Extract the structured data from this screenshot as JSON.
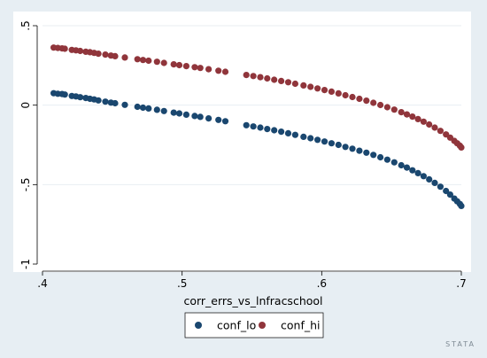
{
  "chart_data": {
    "type": "scatter",
    "xlabel": "corr_errs_vs_lnfracschool",
    "ylabel": "",
    "xlim": [
      0.4,
      0.7
    ],
    "ylim": [
      -1.0,
      0.5
    ],
    "x_ticks": [
      ".4",
      ".5",
      ".6",
      ".7"
    ],
    "y_ticks": [
      "-1",
      "-.5",
      "0",
      ".5"
    ],
    "grid": "horizontal",
    "legend_position": "bottom",
    "series": [
      {
        "name": "conf_lo",
        "color": "#1a476f",
        "points": [
          [
            0.408,
            0.075
          ],
          [
            0.411,
            0.072
          ],
          [
            0.414,
            0.07
          ],
          [
            0.416,
            0.067
          ],
          [
            0.421,
            0.058
          ],
          [
            0.424,
            0.055
          ],
          [
            0.427,
            0.05
          ],
          [
            0.431,
            0.045
          ],
          [
            0.434,
            0.04
          ],
          [
            0.437,
            0.036
          ],
          [
            0.44,
            0.03
          ],
          [
            0.445,
            0.022
          ],
          [
            0.449,
            0.016
          ],
          [
            0.452,
            0.012
          ],
          [
            0.459,
            0.002
          ],
          [
            0.468,
            -0.01
          ],
          [
            0.472,
            -0.016
          ],
          [
            0.476,
            -0.021
          ],
          [
            0.482,
            -0.029
          ],
          [
            0.487,
            -0.037
          ],
          [
            0.494,
            -0.047
          ],
          [
            0.498,
            -0.052
          ],
          [
            0.503,
            -0.06
          ],
          [
            0.509,
            -0.068
          ],
          [
            0.513,
            -0.074
          ],
          [
            0.519,
            -0.083
          ],
          [
            0.526,
            -0.093
          ],
          [
            0.531,
            -0.101
          ],
          [
            0.546,
            -0.126
          ],
          [
            0.551,
            -0.134
          ],
          [
            0.556,
            -0.141
          ],
          [
            0.561,
            -0.15
          ],
          [
            0.566,
            -0.158
          ],
          [
            0.571,
            -0.167
          ],
          [
            0.576,
            -0.177
          ],
          [
            0.581,
            -0.187
          ],
          [
            0.587,
            -0.199
          ],
          [
            0.592,
            -0.208
          ],
          [
            0.597,
            -0.218
          ],
          [
            0.602,
            -0.229
          ],
          [
            0.607,
            -0.24
          ],
          [
            0.612,
            -0.25
          ],
          [
            0.617,
            -0.263
          ],
          [
            0.622,
            -0.274
          ],
          [
            0.627,
            -0.287
          ],
          [
            0.632,
            -0.299
          ],
          [
            0.637,
            -0.313
          ],
          [
            0.642,
            -0.328
          ],
          [
            0.647,
            -0.343
          ],
          [
            0.652,
            -0.36
          ],
          [
            0.657,
            -0.378
          ],
          [
            0.661,
            -0.393
          ],
          [
            0.665,
            -0.41
          ],
          [
            0.669,
            -0.428
          ],
          [
            0.673,
            -0.447
          ],
          [
            0.677,
            -0.467
          ],
          [
            0.681,
            -0.489
          ],
          [
            0.685,
            -0.513
          ],
          [
            0.689,
            -0.54
          ],
          [
            0.692,
            -0.563
          ],
          [
            0.695,
            -0.588
          ],
          [
            0.697,
            -0.605
          ],
          [
            0.699,
            -0.622
          ],
          [
            0.7,
            -0.634
          ]
        ]
      },
      {
        "name": "conf_hi",
        "color": "#90353b",
        "points": [
          [
            0.408,
            0.362
          ],
          [
            0.411,
            0.36
          ],
          [
            0.414,
            0.357
          ],
          [
            0.416,
            0.355
          ],
          [
            0.421,
            0.348
          ],
          [
            0.424,
            0.345
          ],
          [
            0.427,
            0.341
          ],
          [
            0.431,
            0.336
          ],
          [
            0.434,
            0.333
          ],
          [
            0.437,
            0.329
          ],
          [
            0.44,
            0.324
          ],
          [
            0.445,
            0.318
          ],
          [
            0.449,
            0.312
          ],
          [
            0.452,
            0.308
          ],
          [
            0.459,
            0.3
          ],
          [
            0.468,
            0.289
          ],
          [
            0.472,
            0.284
          ],
          [
            0.476,
            0.28
          ],
          [
            0.482,
            0.273
          ],
          [
            0.487,
            0.266
          ],
          [
            0.494,
            0.257
          ],
          [
            0.498,
            0.252
          ],
          [
            0.503,
            0.246
          ],
          [
            0.509,
            0.239
          ],
          [
            0.513,
            0.234
          ],
          [
            0.519,
            0.226
          ],
          [
            0.526,
            0.217
          ],
          [
            0.531,
            0.21
          ],
          [
            0.546,
            0.19
          ],
          [
            0.551,
            0.183
          ],
          [
            0.556,
            0.176
          ],
          [
            0.561,
            0.168
          ],
          [
            0.566,
            0.16
          ],
          [
            0.571,
            0.152
          ],
          [
            0.576,
            0.144
          ],
          [
            0.581,
            0.135
          ],
          [
            0.587,
            0.124
          ],
          [
            0.592,
            0.115
          ],
          [
            0.597,
            0.105
          ],
          [
            0.602,
            0.095
          ],
          [
            0.607,
            0.085
          ],
          [
            0.612,
            0.074
          ],
          [
            0.617,
            0.062
          ],
          [
            0.622,
            0.051
          ],
          [
            0.627,
            0.04
          ],
          [
            0.632,
            0.028
          ],
          [
            0.637,
            0.015
          ],
          [
            0.642,
            0.001
          ],
          [
            0.647,
            -0.013
          ],
          [
            0.652,
            -0.028
          ],
          [
            0.657,
            -0.044
          ],
          [
            0.661,
            -0.058
          ],
          [
            0.665,
            -0.072
          ],
          [
            0.669,
            -0.088
          ],
          [
            0.673,
            -0.104
          ],
          [
            0.677,
            -0.122
          ],
          [
            0.681,
            -0.141
          ],
          [
            0.685,
            -0.162
          ],
          [
            0.689,
            -0.184
          ],
          [
            0.692,
            -0.204
          ],
          [
            0.695,
            -0.225
          ],
          [
            0.697,
            -0.24
          ],
          [
            0.699,
            -0.255
          ],
          [
            0.7,
            -0.266
          ]
        ]
      }
    ]
  },
  "watermark": "STATA"
}
